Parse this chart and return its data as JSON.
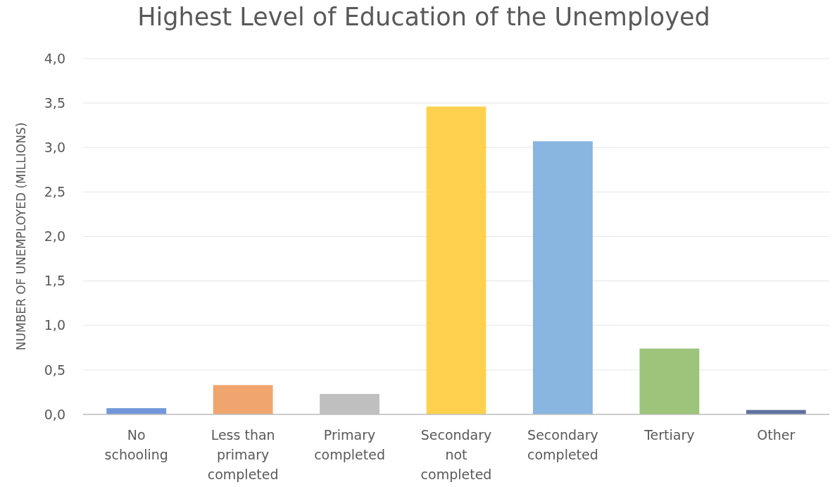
{
  "chart_data": {
    "type": "bar",
    "title": "Highest Level of Education of the Unemployed",
    "ylabel": "NUMBER OF UNEMPLOYED (MILLIONS)",
    "categories": [
      "No schooling",
      "Less than primary completed",
      "Primary completed",
      "Secondary not completed",
      "Secondary completed",
      "Tertiary",
      "Other"
    ],
    "values": [
      0.07,
      0.33,
      0.23,
      3.46,
      3.07,
      0.74,
      0.05
    ],
    "colors": [
      "#7297d9",
      "#f0a56e",
      "#bfbfbf",
      "#ffd14f",
      "#89b5e1",
      "#9cc47b",
      "#5f729e"
    ],
    "ylim": [
      0,
      4
    ],
    "yticks": [
      {
        "value": 0,
        "label": "0,0"
      },
      {
        "value": 0.5,
        "label": "0,5"
      },
      {
        "value": 1,
        "label": "1,0"
      },
      {
        "value": 1.5,
        "label": "1,5"
      },
      {
        "value": 2,
        "label": "2,0"
      },
      {
        "value": 2.5,
        "label": "2,5"
      },
      {
        "value": 3,
        "label": "3,0"
      },
      {
        "value": 3.5,
        "label": "3,5"
      },
      {
        "value": 4,
        "label": "4,0"
      }
    ],
    "grid": "y"
  }
}
